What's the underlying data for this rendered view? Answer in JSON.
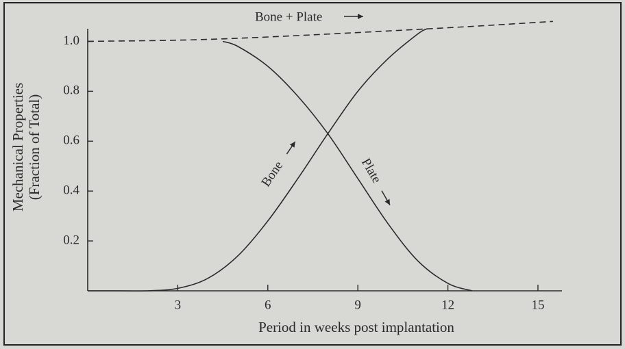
{
  "chart_data": {
    "type": "line",
    "xlabel": "Period in weeks post implantation",
    "ylabel": [
      "Mechanical Properties",
      "(Fraction of Total)"
    ],
    "xlim": [
      0,
      15.8
    ],
    "ylim": [
      0,
      1.1
    ],
    "xticks": [
      3,
      6,
      9,
      12,
      15
    ],
    "yticks": [
      0.2,
      0.4,
      0.6,
      0.8,
      {
        "value": 1,
        "label": "1.0"
      }
    ],
    "grid": false,
    "series": [
      {
        "name": "Bone + Plate",
        "color": "#2a2a2a",
        "dashed": true,
        "x": [
          0,
          4.5,
          11.3,
          15.5
        ],
        "values": [
          1.0,
          1.01,
          1.05,
          1.08
        ]
      },
      {
        "name": "Bone",
        "color": "#2a2a2a",
        "dashed": false,
        "x": [
          0,
          1,
          2,
          3,
          4,
          5,
          6,
          7,
          8,
          9,
          10,
          11,
          11.3
        ],
        "values": [
          0,
          0,
          0,
          0.01,
          0.05,
          0.14,
          0.28,
          0.45,
          0.63,
          0.8,
          0.93,
          1.03,
          1.05
        ]
      },
      {
        "name": "Plate",
        "color": "#2a2a2a",
        "dashed": false,
        "x": [
          4.5,
          5,
          6,
          7,
          8,
          9,
          10,
          11,
          12,
          12.8
        ],
        "values": [
          1.0,
          0.98,
          0.9,
          0.78,
          0.63,
          0.45,
          0.27,
          0.12,
          0.03,
          0
        ]
      }
    ]
  }
}
